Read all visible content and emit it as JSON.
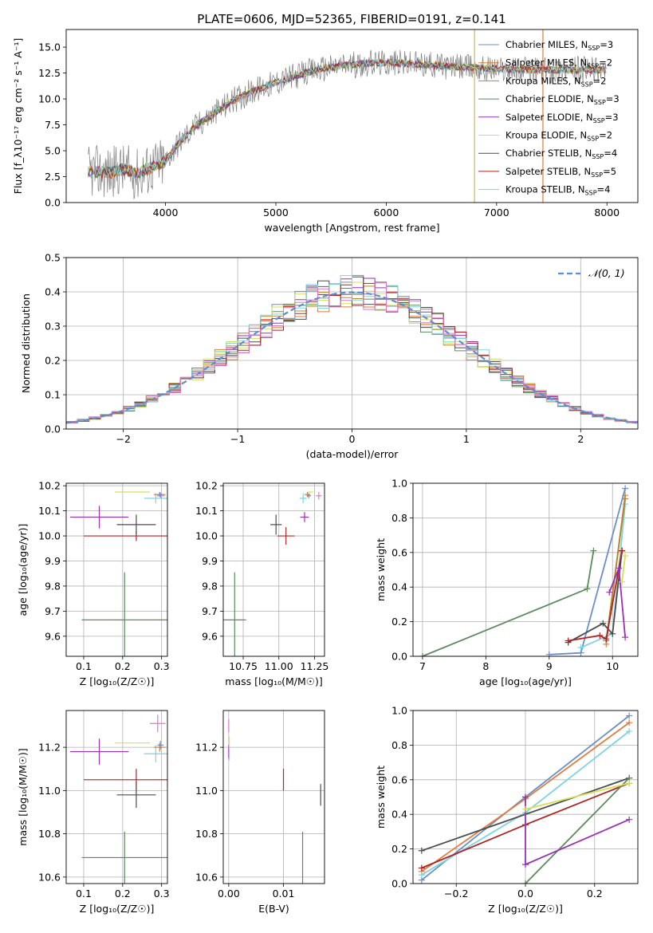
{
  "title": "PLATE=0606, MJD=52365, FIBERID=0191, z=0.141",
  "colors": {
    "Chabrier MILES": "#6c8ec9",
    "Salpeter MILES": "#e07b39",
    "Kroupa MILES": "#b08a2a",
    "Chabrier ELODIE": "#5b8a5b",
    "Salpeter ELODIE": "#9b30b5",
    "Kroupa ELODIE": "#d4e157",
    "Chabrier STELIB": "#4d4d4d",
    "Salpeter STELIB": "#b22222",
    "Kroupa STELIB": "#7ed3e0",
    "Pink": "#e377c2",
    "Data": "#7f7f7f",
    "Normal": "#5a8fd8"
  },
  "chart_data": [
    {
      "id": "spectrum",
      "type": "line",
      "xlabel": "wavelength [Angstrom, rest frame]",
      "ylabel": "Flux [f_λ10⁻¹⁷ erg cm⁻² s⁻¹ A⁻¹]",
      "xlim": [
        3100,
        8280
      ],
      "ylim": [
        0,
        16.7
      ],
      "xticks": [
        4000,
        5000,
        6000,
        7000,
        8000
      ],
      "yticks": [
        0.0,
        2.5,
        5.0,
        7.5,
        10.0,
        12.5,
        15.0
      ],
      "legend_position": "top-right",
      "legend": [
        {
          "label": "Chabrier MILES, N",
          "sub": "SSP",
          "tail": "=3",
          "color": "#6c8ec9"
        },
        {
          "label": "Salpeter MILES, N",
          "sub": "SSP",
          "tail": "=2",
          "color": "#e07b39"
        },
        {
          "label": "Kroupa MILES, N",
          "sub": "SSP",
          "tail": "=2",
          "color": "#b08a2a"
        },
        {
          "label": "Chabrier ELODIE, N",
          "sub": "SSP",
          "tail": "=3",
          "color": "#5b8a5b"
        },
        {
          "label": "Salpeter ELODIE, N",
          "sub": "SSP",
          "tail": "=3",
          "color": "#9b30b5"
        },
        {
          "label": "Kroupa ELODIE, N",
          "sub": "SSP",
          "tail": "=2",
          "color": "#d4e157"
        },
        {
          "label": "Chabrier STELIB, N",
          "sub": "SSP",
          "tail": "=4",
          "color": "#4d4d4d"
        },
        {
          "label": "Salpeter STELIB, N",
          "sub": "SSP",
          "tail": "=5",
          "color": "#b22222"
        },
        {
          "label": "Kroupa STELIB, N",
          "sub": "SSP",
          "tail": "=4",
          "color": "#7ed3e0"
        }
      ],
      "envelope": [
        [
          3300,
          3.0
        ],
        [
          3500,
          2.9
        ],
        [
          3600,
          3.2
        ],
        [
          3750,
          2.8
        ],
        [
          3900,
          3.5
        ],
        [
          4000,
          4.0
        ],
        [
          4100,
          5.5
        ],
        [
          4250,
          7.2
        ],
        [
          4400,
          8.3
        ],
        [
          4600,
          9.8
        ],
        [
          4800,
          10.8
        ],
        [
          5000,
          11.6
        ],
        [
          5200,
          12.3
        ],
        [
          5400,
          12.9
        ],
        [
          5600,
          13.2
        ],
        [
          5800,
          13.4
        ],
        [
          6000,
          13.5
        ],
        [
          6200,
          13.4
        ],
        [
          6500,
          13.2
        ],
        [
          6800,
          13.0
        ],
        [
          7000,
          12.9
        ],
        [
          7300,
          12.8
        ],
        [
          7600,
          12.8
        ],
        [
          7900,
          12.8
        ],
        [
          8000,
          12.8
        ]
      ],
      "spikes": [
        [
          6800,
          0
        ],
        [
          7420,
          0
        ]
      ]
    },
    {
      "id": "residuals",
      "type": "line",
      "xlabel": "(data-model)/error",
      "ylabel": "Normed distribution",
      "xlim": [
        -2.5,
        2.5
      ],
      "ylim": [
        0,
        0.5
      ],
      "xticks": [
        -2,
        -1,
        0,
        1,
        2
      ],
      "yticks": [
        0.0,
        0.1,
        0.2,
        0.3,
        0.4,
        0.5
      ],
      "legend_position": "top-right",
      "legend_label": "𝒩(0, 1)",
      "bin_width": 0.1,
      "series": [
        {
          "color": "#6c8ec9",
          "seed": 1
        },
        {
          "color": "#e07b39",
          "seed": 2
        },
        {
          "color": "#b08a2a",
          "seed": 3
        },
        {
          "color": "#5b8a5b",
          "seed": 4
        },
        {
          "color": "#9b30b5",
          "seed": 5
        },
        {
          "color": "#d4e157",
          "seed": 6
        },
        {
          "color": "#4d4d4d",
          "seed": 7
        },
        {
          "color": "#b22222",
          "seed": 8
        },
        {
          "color": "#7ed3e0",
          "seed": 9
        },
        {
          "color": "#e377c2",
          "seed": 10
        }
      ]
    },
    {
      "id": "age-vs-Z",
      "type": "scatter",
      "xlabel": "Z [log₁₀(Z/Z☉)]",
      "ylabel": "age  [log₁₀(age/yr)]",
      "xlim": [
        0.055,
        0.315
      ],
      "ylim": [
        9.52,
        10.21
      ],
      "xticks": [
        0.1,
        0.2,
        0.3
      ],
      "yticks": [
        9.6,
        9.7,
        9.8,
        9.9,
        10.0,
        10.1,
        10.2
      ],
      "points": [
        {
          "color": "#5b8a5b",
          "x": 0.205,
          "y": 9.665,
          "xerr": 0.11,
          "yerr": 0.19
        },
        {
          "color": "#b22222",
          "x": 0.235,
          "y": 10.0,
          "xerr": 0.135,
          "yerr": 0.02
        },
        {
          "color": "#4d4d4d",
          "x": 0.235,
          "y": 10.045,
          "xerr": 0.05,
          "yerr": 0.04
        },
        {
          "color": "#9b30b5",
          "x": 0.14,
          "y": 10.075,
          "xerr": 0.075,
          "yerr": 0.045
        },
        {
          "color": "#d4e157",
          "x": 0.225,
          "y": 10.175,
          "xerr": 0.045,
          "yerr": 0.0
        },
        {
          "color": "#7ed3e0",
          "x": 0.285,
          "y": 10.15,
          "xerr": 0.03,
          "yerr": 0.02
        },
        {
          "color": "#e07b39",
          "x": 0.295,
          "y": 10.165,
          "xerr": 0.015,
          "yerr": 0.01
        },
        {
          "color": "#e377c2",
          "x": 0.298,
          "y": 10.16,
          "xerr": 0.01,
          "yerr": 0.01
        },
        {
          "color": "#6c8ec9",
          "x": 0.296,
          "y": 10.165,
          "xerr": 0.008,
          "yerr": 0.01
        }
      ]
    },
    {
      "id": "age-vs-mass",
      "type": "scatter",
      "xlabel": "mass [log₁₀(M/M☉)]",
      "ylabel": "",
      "xlim": [
        10.61,
        11.32
      ],
      "ylim": [
        9.52,
        10.21
      ],
      "xticks": [
        10.75,
        11.0,
        11.25
      ],
      "yticks": [
        9.6,
        9.7,
        9.8,
        9.9,
        10.0,
        10.1,
        10.2
      ],
      "points": [
        {
          "color": "#5b8a5b",
          "x": 10.69,
          "y": 9.665,
          "xerr": 0.08,
          "yerr": 0.19
        },
        {
          "color": "#b22222",
          "x": 11.05,
          "y": 10.0,
          "xerr": 0.06,
          "yerr": 0.035
        },
        {
          "color": "#4d4d4d",
          "x": 10.98,
          "y": 10.045,
          "xerr": 0.04,
          "yerr": 0.04
        },
        {
          "color": "#9b30b5",
          "x": 11.18,
          "y": 10.075,
          "xerr": 0.03,
          "yerr": 0.02
        },
        {
          "color": "#d4e157",
          "x": 11.22,
          "y": 10.175,
          "xerr": 0.02,
          "yerr": 0.0
        },
        {
          "color": "#7ed3e0",
          "x": 11.17,
          "y": 10.15,
          "xerr": 0.025,
          "yerr": 0.02
        },
        {
          "color": "#e07b39",
          "x": 11.2,
          "y": 10.165,
          "xerr": 0.02,
          "yerr": 0.01
        },
        {
          "color": "#e377c2",
          "x": 11.28,
          "y": 10.16,
          "xerr": 0.02,
          "yerr": 0.015
        },
        {
          "color": "#6c8ec9",
          "x": 11.21,
          "y": 10.16,
          "xerr": 0.015,
          "yerr": 0.01
        }
      ]
    },
    {
      "id": "massweight-vs-age",
      "type": "line",
      "xlabel": "age  [log₁₀(age/yr)]",
      "ylabel": "mass weight",
      "xlim": [
        6.85,
        10.4
      ],
      "ylim": [
        0,
        1
      ],
      "xticks": [
        7,
        8,
        9,
        10
      ],
      "yticks": [
        0.0,
        0.2,
        0.4,
        0.6,
        0.8,
        1.0
      ],
      "series": [
        {
          "color": "#5b8a5b",
          "x": [
            7.0,
            9.6,
            9.7
          ],
          "y": [
            0.0,
            0.39,
            0.61
          ]
        },
        {
          "color": "#6c8ec9",
          "x": [
            9.0,
            9.5,
            10.2
          ],
          "y": [
            0.01,
            0.02,
            0.97
          ]
        },
        {
          "color": "#7ed3e0",
          "x": [
            9.5,
            10.0,
            10.2
          ],
          "y": [
            0.05,
            0.13,
            0.88
          ]
        },
        {
          "color": "#e07b39",
          "x": [
            9.9,
            10.2
          ],
          "y": [
            0.07,
            0.93
          ]
        },
        {
          "color": "#b08a2a",
          "x": [
            9.9,
            10.2
          ],
          "y": [
            0.09,
            0.91
          ]
        },
        {
          "color": "#4d4d4d",
          "x": [
            9.3,
            9.85,
            10.0,
            10.15
          ],
          "y": [
            0.08,
            0.19,
            0.13,
            0.61
          ]
        },
        {
          "color": "#b22222",
          "x": [
            9.3,
            9.8,
            9.9,
            10.15
          ],
          "y": [
            0.09,
            0.12,
            0.1,
            0.61
          ]
        },
        {
          "color": "#9b30b5",
          "x": [
            9.95,
            10.1,
            10.2
          ],
          "y": [
            0.37,
            0.51,
            0.11
          ]
        },
        {
          "color": "#d4e157",
          "x": [
            10.15,
            10.2
          ],
          "y": [
            0.43,
            0.58
          ]
        }
      ]
    },
    {
      "id": "mass-vs-Z",
      "type": "scatter",
      "xlabel": "Z [log₁₀(Z/Z☉)]",
      "ylabel": "mass [log₁₀(M/M☉)]",
      "xlim": [
        0.055,
        0.315
      ],
      "ylim": [
        10.57,
        11.37
      ],
      "xticks": [
        0.1,
        0.2,
        0.3
      ],
      "yticks": [
        10.6,
        10.8,
        11.0,
        11.2
      ],
      "points": [
        {
          "color": "#5b8a5b",
          "x": 0.205,
          "y": 10.69,
          "xerr": 0.11,
          "yerr": 0.12
        },
        {
          "color": "#b22222",
          "x": 0.235,
          "y": 11.05,
          "xerr": 0.135,
          "yerr": 0.05
        },
        {
          "color": "#4d4d4d",
          "x": 0.235,
          "y": 10.98,
          "xerr": 0.05,
          "yerr": 0.06
        },
        {
          "color": "#9b30b5",
          "x": 0.14,
          "y": 11.18,
          "xerr": 0.075,
          "yerr": 0.06
        },
        {
          "color": "#d4e157",
          "x": 0.225,
          "y": 11.22,
          "xerr": 0.045,
          "yerr": 0.0
        },
        {
          "color": "#7ed3e0",
          "x": 0.285,
          "y": 11.17,
          "xerr": 0.03,
          "yerr": 0.04
        },
        {
          "color": "#e07b39",
          "x": 0.295,
          "y": 11.2,
          "xerr": 0.015,
          "yerr": 0.02
        },
        {
          "color": "#e377c2",
          "x": 0.29,
          "y": 11.31,
          "xerr": 0.02,
          "yerr": 0.04
        },
        {
          "color": "#6c8ec9",
          "x": 0.297,
          "y": 11.21,
          "xerr": 0.008,
          "yerr": 0.02
        }
      ]
    },
    {
      "id": "mass-vs-ebv",
      "type": "scatter",
      "xlabel": "E(B-V)",
      "ylabel": "",
      "xlim": [
        -0.001,
        0.0175
      ],
      "ylim": [
        10.57,
        11.37
      ],
      "xticks": [
        0.0,
        0.01
      ],
      "yticks": [
        10.6,
        10.8,
        11.0,
        11.2
      ],
      "points": [
        {
          "color": "#5b8a5b",
          "x": 0.0135,
          "y": 10.69,
          "xerr": 0.0,
          "yerr": 0.12
        },
        {
          "color": "#b22222",
          "x": 0.01,
          "y": 11.05,
          "xerr": 0.0,
          "yerr": 0.05
        },
        {
          "color": "#4d4d4d",
          "x": 0.0168,
          "y": 10.98,
          "xerr": 0.0,
          "yerr": 0.05
        },
        {
          "color": "#9b30b5",
          "x": 0.0,
          "y": 11.18,
          "xerr": 0.0,
          "yerr": 0.03
        },
        {
          "color": "#d4e157",
          "x": 0.0001,
          "y": 11.22,
          "xerr": 0.0,
          "yerr": 0.03
        },
        {
          "color": "#7ed3e0",
          "x": 0.0001,
          "y": 11.17,
          "xerr": 0.0,
          "yerr": 0.03
        },
        {
          "color": "#e377c2",
          "x": 0.0,
          "y": 11.3,
          "xerr": 0.0,
          "yerr": 0.03
        }
      ]
    },
    {
      "id": "massweight-vs-Z",
      "type": "line",
      "xlabel": "Z [log₁₀(Z/Z☉)]",
      "ylabel": "mass weight",
      "xlim": [
        -0.325,
        0.325
      ],
      "ylim": [
        0,
        1
      ],
      "xticks": [
        -0.2,
        0.0,
        0.2
      ],
      "yticks": [
        0.0,
        0.2,
        0.4,
        0.6,
        0.8,
        1.0
      ],
      "series": [
        {
          "color": "#6c8ec9",
          "x": [
            -0.3,
            0.0,
            0.3
          ],
          "y": [
            0.02,
            0.5,
            0.97
          ]
        },
        {
          "color": "#e07b39",
          "x": [
            -0.3,
            0.0,
            0.3
          ],
          "y": [
            0.07,
            0.49,
            0.93
          ]
        },
        {
          "color": "#7ed3e0",
          "x": [
            -0.3,
            0.0,
            0.3
          ],
          "y": [
            0.05,
            0.41,
            0.88
          ]
        },
        {
          "color": "#4d4d4d",
          "x": [
            -0.3,
            0.3
          ],
          "y": [
            0.19,
            0.61
          ]
        },
        {
          "color": "#b22222",
          "x": [
            -0.3,
            0.0,
            0.3
          ],
          "y": [
            0.09,
            0.34,
            0.58
          ]
        },
        {
          "color": "#5b8a5b",
          "x": [
            0.0,
            0.3
          ],
          "y": [
            0.0,
            0.61
          ]
        },
        {
          "color": "#9b30b5",
          "x": [
            0.0,
            0.0,
            0.3
          ],
          "y": [
            0.5,
            0.11,
            0.37
          ]
        },
        {
          "color": "#d4e157",
          "x": [
            0.0,
            0.3
          ],
          "y": [
            0.43,
            0.58
          ]
        }
      ]
    }
  ]
}
